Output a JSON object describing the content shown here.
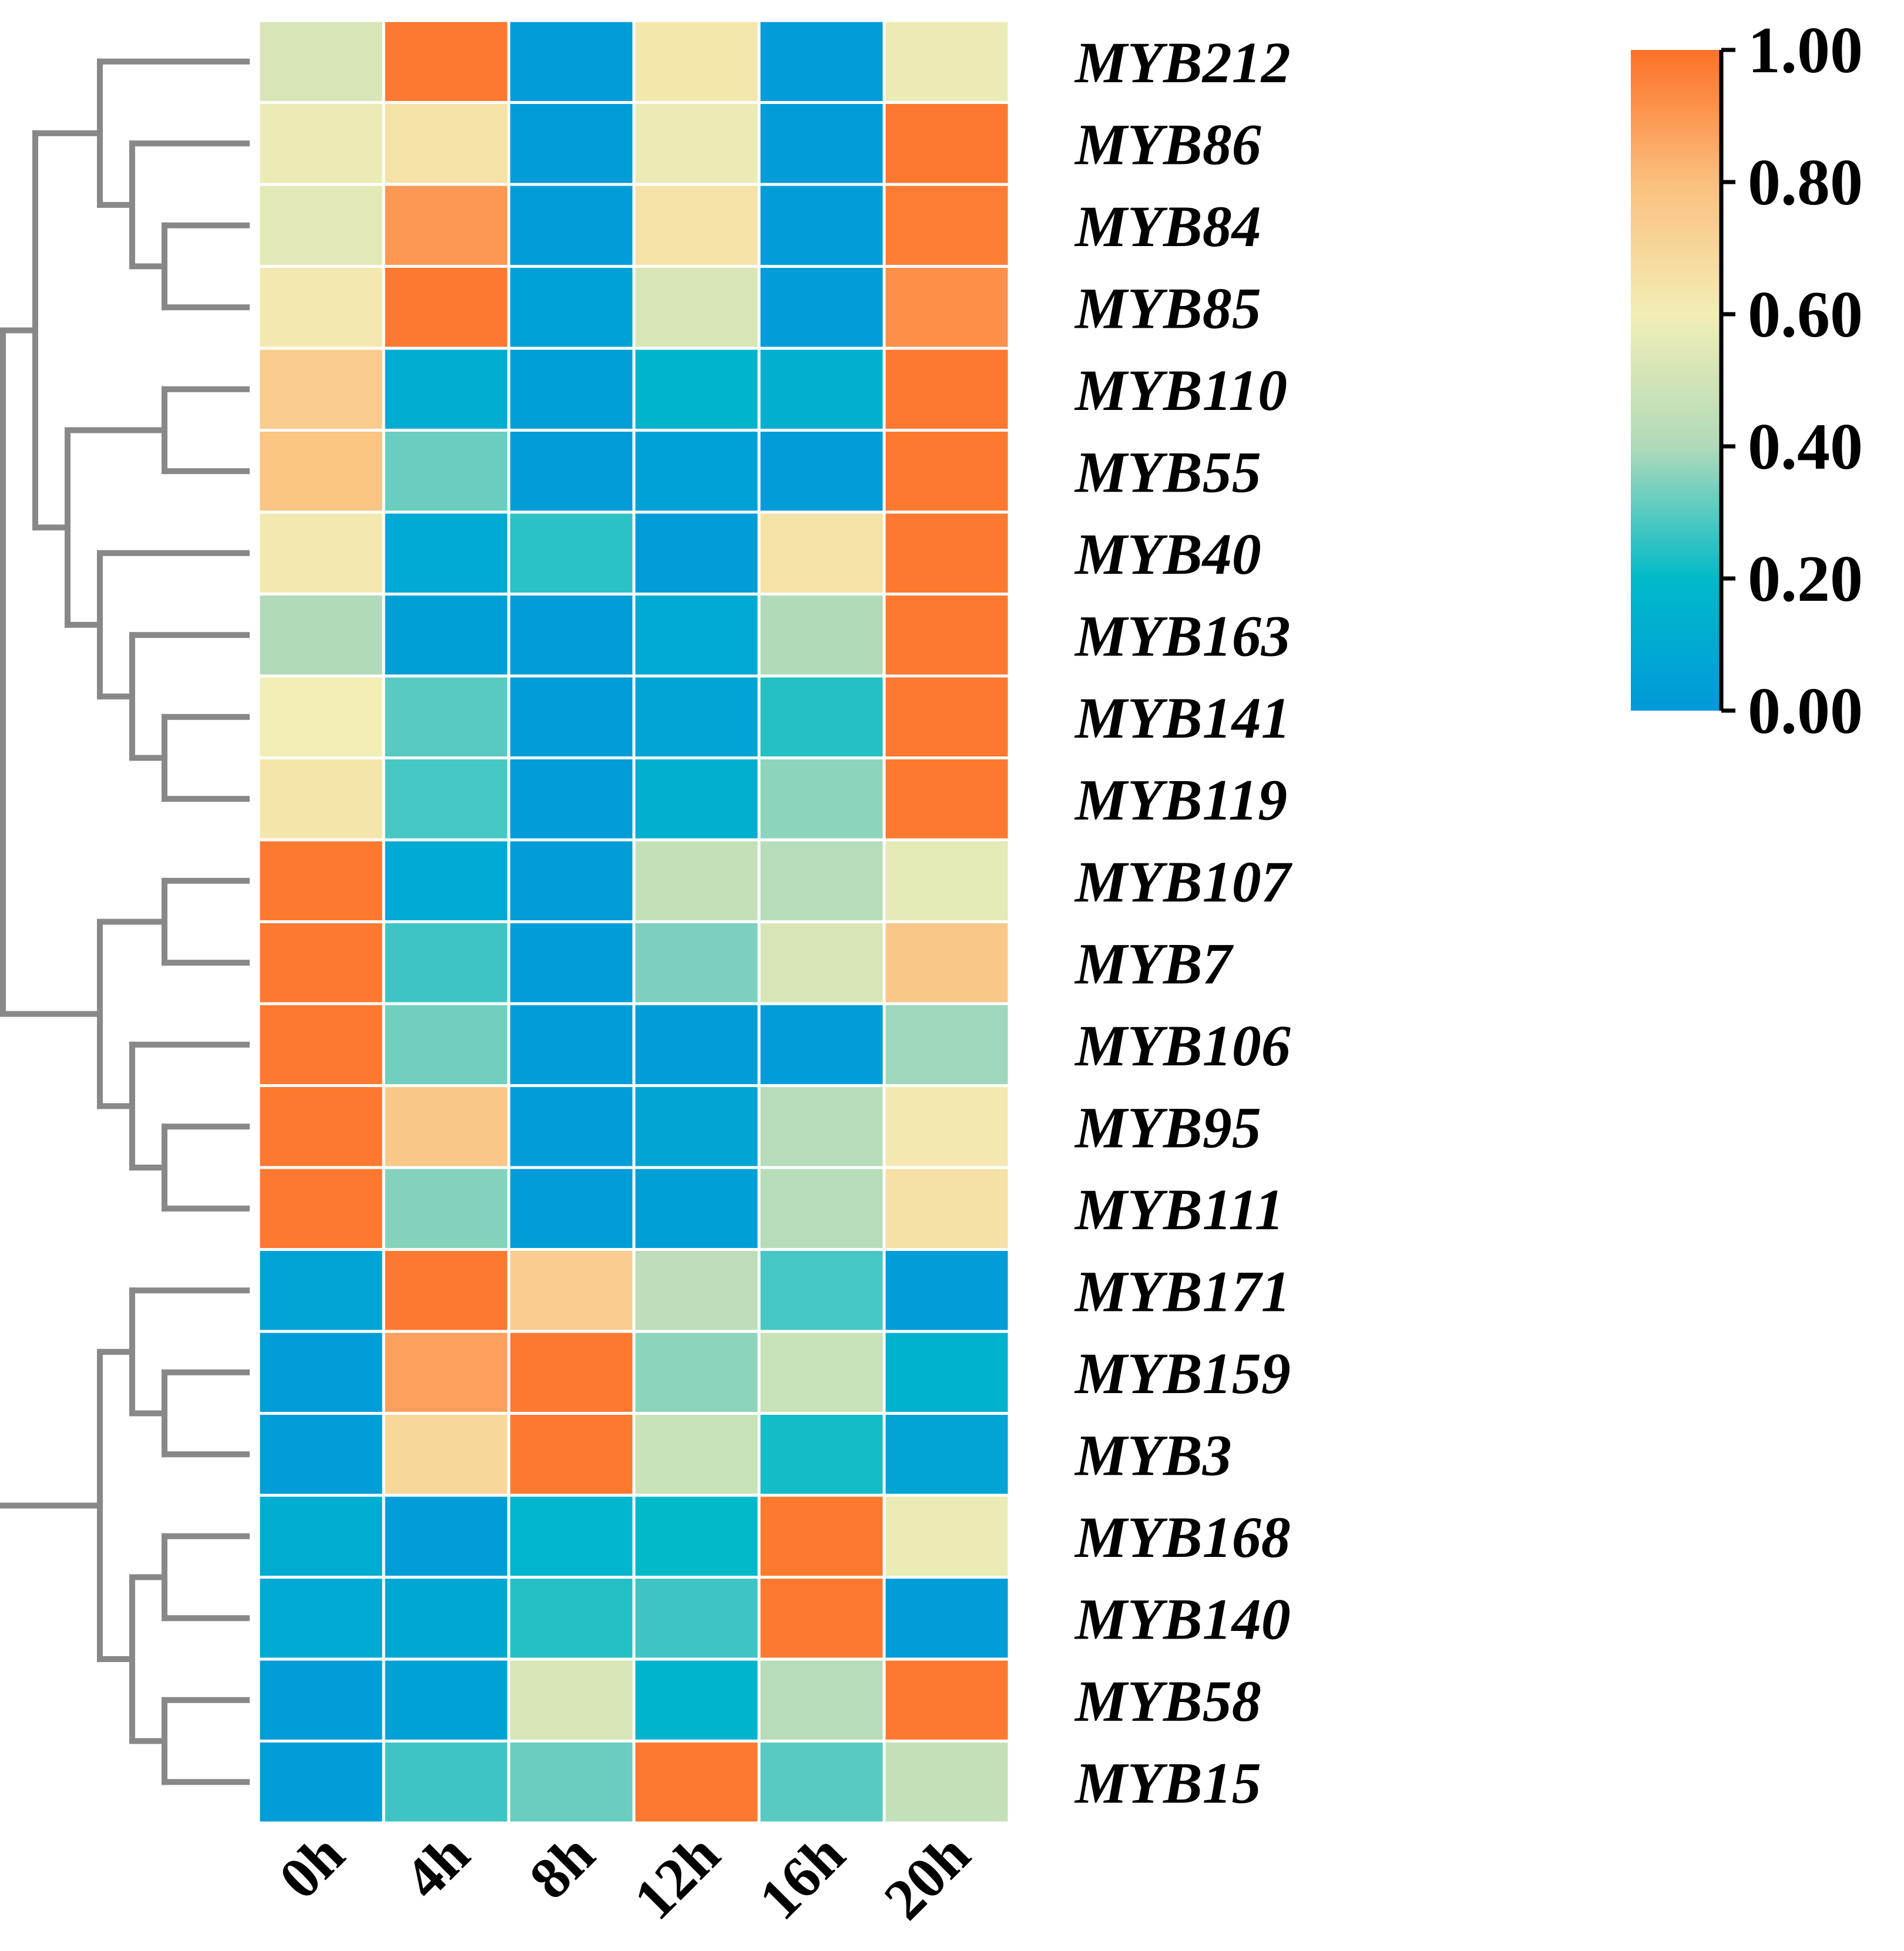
{
  "chart_data": {
    "type": "heatmap",
    "title": "",
    "columns": [
      "0h",
      "4h",
      "8h",
      "12h",
      "16h",
      "20h"
    ],
    "rows": [
      "MYB212",
      "MYB86",
      "MYB84",
      "MYB85",
      "MYB110",
      "MYB55",
      "MYB40",
      "MYB163",
      "MYB141",
      "MYB119",
      "MYB107",
      "MYB7",
      "MYB106",
      "MYB95",
      "MYB111",
      "MYB171",
      "MYB159",
      "MYB3",
      "MYB168",
      "MYB140",
      "MYB58",
      "MYB15"
    ],
    "values": [
      [
        0.52,
        0.98,
        0.02,
        0.63,
        0.02,
        0.58
      ],
      [
        0.58,
        0.65,
        0.02,
        0.58,
        0.02,
        0.98
      ],
      [
        0.55,
        0.9,
        0.02,
        0.65,
        0.02,
        0.97
      ],
      [
        0.62,
        0.98,
        0.05,
        0.52,
        0.02,
        0.92
      ],
      [
        0.75,
        0.12,
        0.03,
        0.16,
        0.14,
        0.98
      ],
      [
        0.78,
        0.32,
        0.02,
        0.05,
        0.02,
        0.98
      ],
      [
        0.62,
        0.1,
        0.25,
        0.02,
        0.65,
        0.98
      ],
      [
        0.4,
        0.04,
        0.02,
        0.1,
        0.4,
        0.98
      ],
      [
        0.6,
        0.3,
        0.02,
        0.06,
        0.24,
        0.98
      ],
      [
        0.64,
        0.28,
        0.02,
        0.14,
        0.36,
        0.98
      ],
      [
        0.98,
        0.1,
        0.02,
        0.46,
        0.42,
        0.56
      ],
      [
        0.98,
        0.27,
        0.02,
        0.34,
        0.52,
        0.76
      ],
      [
        0.98,
        0.33,
        0.02,
        0.02,
        0.02,
        0.38
      ],
      [
        0.98,
        0.76,
        0.02,
        0.07,
        0.42,
        0.62
      ],
      [
        0.98,
        0.35,
        0.02,
        0.04,
        0.42,
        0.66
      ],
      [
        0.06,
        0.98,
        0.74,
        0.44,
        0.28,
        0.02
      ],
      [
        0.02,
        0.88,
        0.98,
        0.36,
        0.48,
        0.15
      ],
      [
        0.02,
        0.7,
        0.98,
        0.48,
        0.22,
        0.06
      ],
      [
        0.12,
        0.02,
        0.17,
        0.2,
        0.98,
        0.58
      ],
      [
        0.1,
        0.08,
        0.24,
        0.27,
        0.98,
        0.02
      ],
      [
        0.02,
        0.05,
        0.52,
        0.16,
        0.42,
        0.98
      ],
      [
        0.02,
        0.27,
        0.32,
        0.98,
        0.3,
        0.46
      ]
    ],
    "colorbar": {
      "min": 0.0,
      "max": 1.0,
      "ticks": [
        "0.00",
        "0.20",
        "0.40",
        "0.60",
        "0.80",
        "1.00"
      ],
      "colors": [
        "#009ada",
        "#00bac9",
        "#b0dab9",
        "#f2eeb5",
        "#fbbf7e",
        "#fd7127"
      ]
    },
    "dendrogram": {
      "line_color": "#888888",
      "structure": [
        [
          [
            [
              0,
              [
                [
                  1
                ],
                [
                  2,
                  3
                ]
              ]
            ],
            [
              [
                4,
                5
              ],
              [
                6,
                [
                  7,
                  [
                    8,
                    9
                  ]
                ]
              ]
            ]
          ],
          [
            [
              10,
              11
            ],
            [
              12,
              [
                13,
                14
              ]
            ]
          ]
        ],
        [
          [
            15,
            [
              16,
              17
            ]
          ],
          [
            [
              18,
              19
            ],
            [
              20,
              21
            ]
          ]
        ]
      ]
    }
  }
}
